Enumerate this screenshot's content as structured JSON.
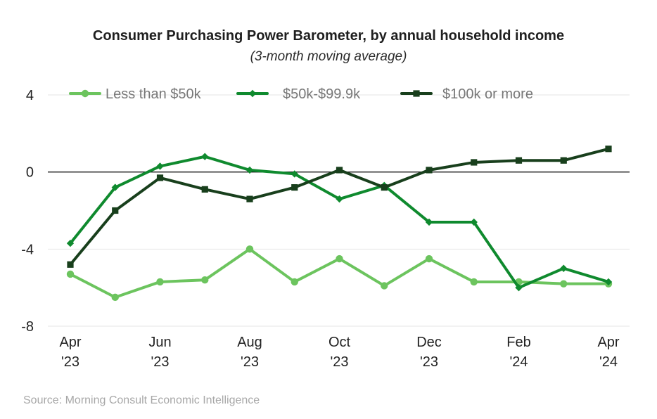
{
  "chart_data": {
    "type": "line",
    "title": "Consumer Purchasing Power Barometer, by annual household income",
    "subtitle": "(3-month moving average)",
    "source": "Source: Morning Consult Economic Intelligence",
    "xlabel": "",
    "ylabel": "",
    "ylim": [
      -8,
      4
    ],
    "yticks": [
      "4",
      "0",
      "-4",
      "-8"
    ],
    "ytick_values": [
      4,
      0,
      -4,
      -8
    ],
    "x": [
      "Apr 2023",
      "May 2023",
      "Jun 2023",
      "Jul 2023",
      "Aug 2023",
      "Sep 2023",
      "Oct 2023",
      "Nov 2023",
      "Dec 2023",
      "Jan 2024",
      "Feb 2024",
      "Mar 2024",
      "Apr 2024"
    ],
    "xticks": [
      {
        "index": 0,
        "line1": "Apr",
        "line2": "'23"
      },
      {
        "index": 2,
        "line1": "Jun",
        "line2": "'23"
      },
      {
        "index": 4,
        "line1": "Aug",
        "line2": "'23"
      },
      {
        "index": 6,
        "line1": "Oct",
        "line2": "'23"
      },
      {
        "index": 8,
        "line1": "Dec",
        "line2": "'23"
      },
      {
        "index": 10,
        "line1": "Feb",
        "line2": "'24"
      },
      {
        "index": 12,
        "line1": "Apr",
        "line2": "'24"
      }
    ],
    "legend_position": "top",
    "grid": true,
    "series": [
      {
        "name": "Less than $50k",
        "color": "#6cc45e",
        "marker": "circle",
        "values": [
          -5.3,
          -6.5,
          -5.7,
          -5.6,
          -4.0,
          -5.7,
          -4.5,
          -5.9,
          -4.5,
          -5.7,
          -5.7,
          -5.8,
          -5.8
        ]
      },
      {
        "name": "$50k-$99.9k",
        "color": "#0f8a2e",
        "marker": "diamond",
        "values": [
          -3.7,
          -0.8,
          0.3,
          0.8,
          0.1,
          -0.1,
          -1.4,
          -0.7,
          -2.6,
          -2.6,
          -6.0,
          -5.0,
          -5.7
        ]
      },
      {
        "name": "$100k or more",
        "color": "#183f1c",
        "marker": "square",
        "values": [
          -4.8,
          -2.0,
          -0.3,
          -0.9,
          -1.4,
          -0.8,
          0.1,
          -0.8,
          0.1,
          0.5,
          0.6,
          0.6,
          1.2
        ]
      }
    ]
  }
}
